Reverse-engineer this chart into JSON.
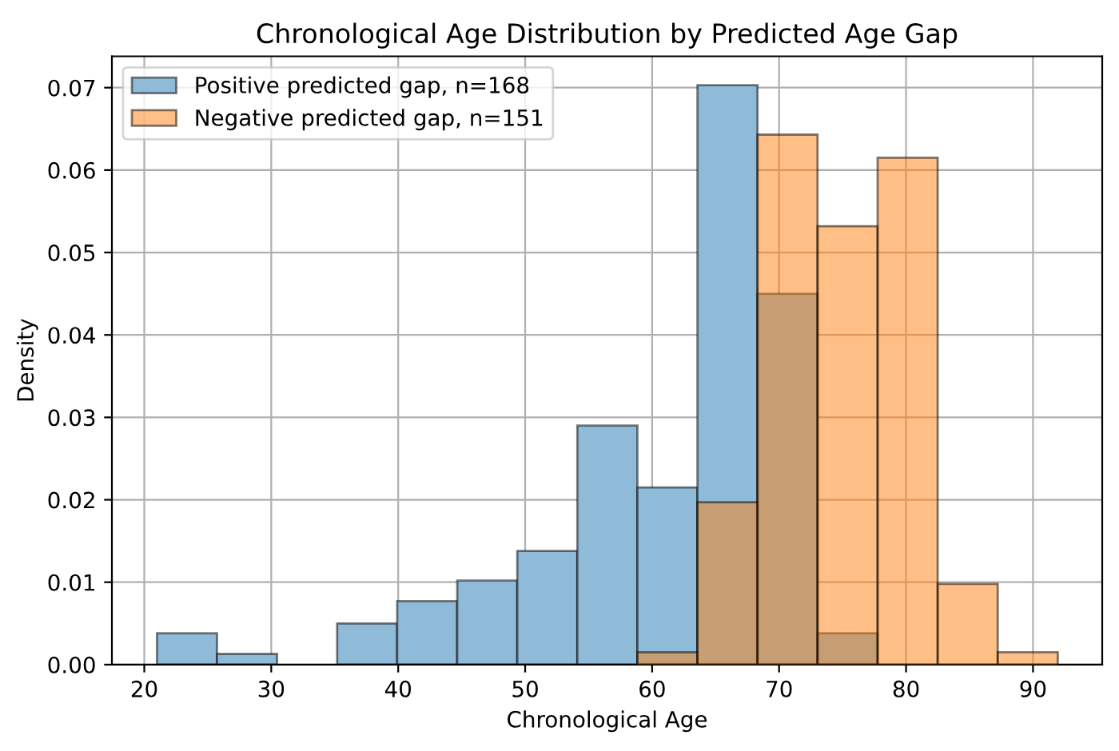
{
  "chart_data": {
    "type": "histogram",
    "title": "Chronological Age Distribution by Predicted Age Gap",
    "xlabel": "Chronological Age",
    "ylabel": "Density",
    "bins": [
      21.0,
      25.73,
      30.46,
      35.19,
      39.92,
      44.65,
      49.38,
      54.11,
      58.84,
      63.57,
      68.3,
      73.03,
      77.76,
      82.49,
      87.22,
      91.95
    ],
    "series": [
      {
        "name": "Positive predicted gap, n=168",
        "color": "#8fbbd9",
        "values": [
          0.0038,
          0.0013,
          0.0,
          0.005,
          0.0077,
          0.0102,
          0.0138,
          0.029,
          0.0215,
          0.0703,
          0.045,
          0.0038,
          0,
          0,
          0
        ]
      },
      {
        "name": "Negative predicted gap, n=151",
        "color": "#ffbf86",
        "values": [
          0,
          0,
          0,
          0,
          0,
          0,
          0,
          0,
          0.0015,
          0.0197,
          0.0643,
          0.0532,
          0.0615,
          0.0098,
          0.0015
        ]
      }
    ],
    "xlim": [
      17.45,
      95.45
    ],
    "ylim": [
      0,
      0.0738
    ],
    "xticks": [
      20,
      30,
      40,
      50,
      60,
      70,
      80,
      90
    ],
    "yticks": [
      {
        "value": 0,
        "label": "0.00"
      },
      0.01,
      0.02,
      0.03,
      0.04,
      0.05,
      0.06,
      0.07
    ],
    "grid": true,
    "legend": "top left"
  }
}
